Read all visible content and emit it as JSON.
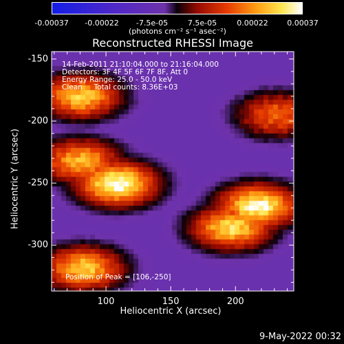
{
  "colorbar": {
    "tick_labels": [
      "-0.00037",
      "-0.00022",
      "-7.5e-05",
      "7.5e-05",
      "0.00022",
      "0.00037"
    ],
    "units": "(photons cm⁻² s⁻¹ asec⁻²)",
    "min": -0.00037,
    "max": 0.00037
  },
  "chart_data": {
    "type": "heatmap",
    "title": "Reconstructed RHESSI Image",
    "xlabel": "Heliocentric X (arcsec)",
    "ylabel": "Heliocentric Y (arcsec)",
    "xlim": [
      58,
      245
    ],
    "ylim": [
      -337,
      -144
    ],
    "xticks": [
      100,
      150,
      200
    ],
    "yticks": [
      -150,
      -200,
      -250,
      -300
    ],
    "colormap": "blue-purple-red-yellow-white",
    "bright_regions": [
      {
        "x": 80,
        "y": -180,
        "level": 0.75
      },
      {
        "x": 108,
        "y": -250,
        "level": 0.95
      },
      {
        "x": 80,
        "y": -232,
        "level": 0.7
      },
      {
        "x": 215,
        "y": -268,
        "level": 0.9
      },
      {
        "x": 195,
        "y": -285,
        "level": 0.8
      },
      {
        "x": 82,
        "y": -318,
        "level": 0.75
      },
      {
        "x": 230,
        "y": -195,
        "level": 0.55
      }
    ],
    "peak_position": [
      106,
      -250
    ]
  },
  "info_lines": [
    "14-Feb-2011 21:10:04.000 to 21:16:04.000",
    "Detectors: 3F 4F 5F 6F 7F 8F, Att 0",
    "Energy Range: 25.0 - 50.0 keV",
    "Clean     Total counts: 8.36E+03"
  ],
  "peak_label": "Position of Peak = [106,-250]",
  "timestamp": "9-May-2022 00:32"
}
